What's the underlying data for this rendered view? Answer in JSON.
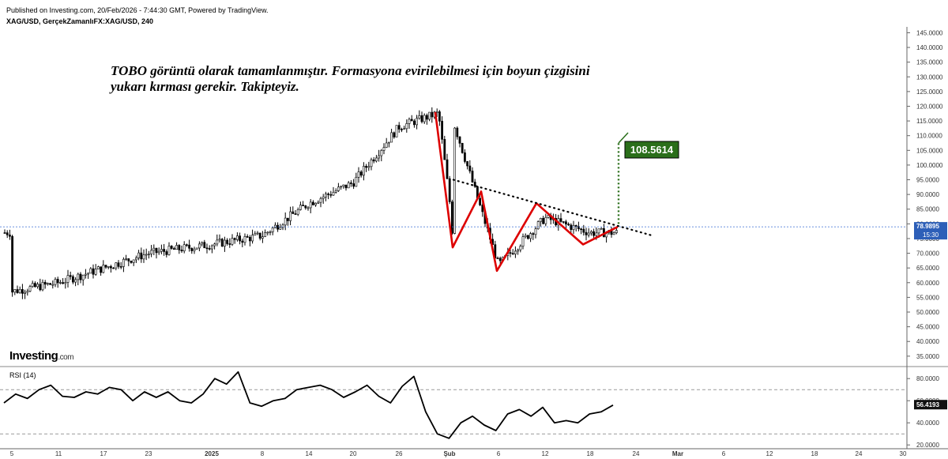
{
  "header": {
    "published": "Published on Investing.com, 20/Feb/2026 - 7:44:30 GMT, Powered by TradingView.",
    "symbol": "XAG/USD, GerçekZamanlıFX:XAG/USD, 240"
  },
  "annotation": {
    "line1": "TOBO görüntü olarak tamamlanmıştır. Formasyona evirilebilmesi için boyun çizgisini",
    "line2": "yukarı kırması gerekir. Takipteyiz."
  },
  "logo": {
    "main": "Investing",
    "suffix": ".com"
  },
  "target_label": "108.5614",
  "price_tag": {
    "value": "78.9895",
    "time": "15:30"
  },
  "rsi": {
    "label": "RSI (14)",
    "value_tag": "56.4193",
    "levels": [
      70,
      30
    ]
  },
  "colors": {
    "candle": "#000000",
    "pattern": "#dd0000",
    "target": "#2a6e1a",
    "price_line": "#3a6cd6",
    "rsi": "#000000"
  },
  "chart_data": {
    "type": "candlestick",
    "y_axis_ticks": [
      "145.0000",
      "140.0000",
      "135.0000",
      "130.0000",
      "125.0000",
      "120.0000",
      "115.0000",
      "110.0000",
      "105.0000",
      "100.0000",
      "95.0000",
      "90.0000",
      "85.0000",
      "80.0000",
      "75.0000",
      "70.0000",
      "65.0000",
      "60.0000",
      "55.0000",
      "50.0000",
      "45.0000",
      "40.0000",
      "35.0000"
    ],
    "y_range": [
      32,
      147
    ],
    "x_ticks": [
      "5",
      "11",
      "17",
      "23",
      "2025",
      "8",
      "14",
      "20",
      "26",
      "Şub",
      "6",
      "12",
      "18",
      "24",
      "Mar",
      "6",
      "12",
      "18",
      "24",
      "30"
    ],
    "rsi_ticks": [
      "80.0000",
      "60.0000",
      "40.0000",
      "20.0000"
    ],
    "rsi_range": [
      18,
      88
    ],
    "close_series": [
      {
        "x": "5",
        "y": 57
      },
      {
        "x": "11",
        "y": 60
      },
      {
        "x": "17",
        "y": 65
      },
      {
        "x": "23",
        "y": 70
      },
      {
        "x": "2025",
        "y": 73
      },
      {
        "x": "8",
        "y": 76
      },
      {
        "x": "14",
        "y": 87
      },
      {
        "x": "20",
        "y": 94
      },
      {
        "x": "26",
        "y": 113
      },
      {
        "x": "Şub",
        "y": 119
      },
      {
        "x": "6",
        "y": 66
      },
      {
        "x": "12",
        "y": 82
      },
      {
        "x": "18",
        "y": 77
      }
    ],
    "pattern_points": [
      {
        "x": "Şub",
        "y": 118
      },
      {
        "x": "Şub",
        "y": 72
      },
      {
        "x": "6",
        "y": 91
      },
      {
        "x": "6",
        "y": 64
      },
      {
        "x": "12",
        "y": 87
      },
      {
        "x": "18",
        "y": 73
      },
      {
        "x": "18",
        "y": 79
      }
    ],
    "neckline": [
      {
        "y": 95
      },
      {
        "y": 76
      }
    ],
    "rsi_values": [
      58,
      66,
      62,
      70,
      74,
      64,
      63,
      68,
      66,
      72,
      70,
      60,
      68,
      63,
      68,
      60,
      58,
      66,
      80,
      75,
      86,
      58,
      55,
      60,
      62,
      70,
      72,
      74,
      70,
      63,
      68,
      74,
      64,
      58,
      73,
      82,
      50,
      30,
      26,
      40,
      46,
      38,
      33,
      48,
      52,
      46,
      54,
      40,
      42,
      40,
      48,
      50,
      56
    ]
  }
}
